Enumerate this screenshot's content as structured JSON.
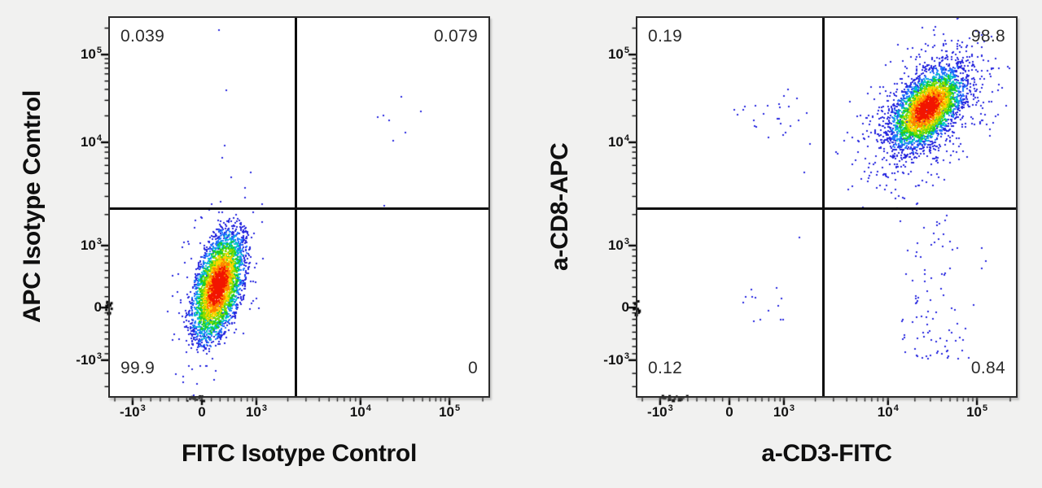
{
  "figure": {
    "background": "#f1f1f0",
    "description": "Two-panel flow cytometry pseudocolor density dot plots with quadrant gates"
  },
  "palette": {
    "density": [
      "#f21500",
      "#ff7e00",
      "#ffd400",
      "#8fdc00",
      "#1ecf1e",
      "#00c8c8",
      "#1e78ff",
      "#2222dd"
    ],
    "thresholds": [
      0.5,
      0.75,
      1.0,
      1.22,
      1.45,
      1.7,
      2.0
    ],
    "dot_blue": "#2525df",
    "tick_color": "#000000",
    "frame_color": "#2b2b2b",
    "quadrant_line_color": "#0c0c0c"
  },
  "chart_data": [
    {
      "type": "scatter",
      "panel": "left",
      "xlabel": "FITC Isotype Control",
      "ylabel": "APC Isotype Control",
      "x_axis": {
        "ticks": [
          {
            "base": "-10",
            "sup": "3",
            "frac": 0.06
          },
          {
            "base": "0",
            "sup": "",
            "frac": 0.243
          },
          {
            "base": "10",
            "sup": "3",
            "frac": 0.387
          },
          {
            "base": "10",
            "sup": "4",
            "frac": 0.662
          },
          {
            "base": "10",
            "sup": "5",
            "frac": 0.897
          }
        ],
        "minor_fracs": [
          0.013,
          0.082,
          0.108,
          0.133,
          0.157,
          0.181,
          0.203,
          0.225,
          0.268,
          0.291,
          0.312,
          0.329,
          0.347,
          0.363,
          0.377,
          0.47,
          0.518,
          0.553,
          0.579,
          0.601,
          0.619,
          0.635,
          0.649,
          0.733,
          0.774,
          0.803,
          0.826,
          0.845,
          0.861,
          0.874,
          0.886,
          0.985
        ]
      },
      "y_axis": {
        "ticks": [
          {
            "base": "-10",
            "sup": "3",
            "frac": 0.095
          },
          {
            "base": "0",
            "sup": "",
            "frac": 0.234
          },
          {
            "base": "10",
            "sup": "3",
            "frac": 0.398
          },
          {
            "base": "10",
            "sup": "4",
            "frac": 0.671
          },
          {
            "base": "10",
            "sup": "5",
            "frac": 0.903
          }
        ],
        "minor_fracs": [
          0.025,
          0.06,
          0.112,
          0.131,
          0.151,
          0.169,
          0.187,
          0.203,
          0.22,
          0.263,
          0.288,
          0.313,
          0.332,
          0.352,
          0.37,
          0.387,
          0.48,
          0.528,
          0.562,
          0.589,
          0.61,
          0.629,
          0.645,
          0.658,
          0.741,
          0.782,
          0.811,
          0.833,
          0.852,
          0.867,
          0.88,
          0.892,
          0.973
        ]
      },
      "quadrants": {
        "x_frac": 0.491,
        "y_frac": 0.495,
        "labels": {
          "UL": "0.039",
          "UR": "0.079",
          "LL": "99.9",
          "LR": "0"
        }
      },
      "populations": [
        {
          "name": "double-negative-main",
          "kind": "gauss",
          "n": 3600,
          "cx": 0.286,
          "cy": 0.29,
          "angle": 75,
          "smaj": 0.075,
          "smin": 0.0295,
          "rmax": 2.5,
          "seed": 101,
          "paint": "density"
        },
        {
          "name": "double-negative-halo",
          "kind": "gauss",
          "n": 240,
          "cx": 0.286,
          "cy": 0.292,
          "angle": 75,
          "smaj": 0.145,
          "smin": 0.056,
          "rmax": 2.2,
          "seed": 102,
          "paint": "blue"
        }
      ],
      "outliers": [
        [
          0.288,
          0.968
        ],
        [
          0.308,
          0.808
        ],
        [
          0.303,
          0.662
        ],
        [
          0.297,
          0.63
        ],
        [
          0.77,
          0.791
        ],
        [
          0.822,
          0.753
        ],
        [
          0.723,
          0.742
        ],
        [
          0.708,
          0.738
        ],
        [
          0.738,
          0.729
        ],
        [
          0.781,
          0.697
        ],
        [
          0.748,
          0.675
        ],
        [
          0.725,
          0.503
        ]
      ],
      "axis_pileups": {
        "x": {
          "from": 0.205,
          "to": 0.25,
          "n": 12
        },
        "y": {
          "from": 0.215,
          "to": 0.252,
          "n": 11
        }
      }
    },
    {
      "type": "scatter",
      "panel": "right",
      "xlabel": "a-CD3-FITC",
      "ylabel": "a-CD8-APC",
      "x_axis": {
        "ticks": [
          {
            "base": "-10",
            "sup": "3",
            "frac": 0.06
          },
          {
            "base": "0",
            "sup": "",
            "frac": 0.243
          },
          {
            "base": "10",
            "sup": "3",
            "frac": 0.387
          },
          {
            "base": "10",
            "sup": "4",
            "frac": 0.662
          },
          {
            "base": "10",
            "sup": "5",
            "frac": 0.897
          }
        ],
        "minor_fracs": [
          0.013,
          0.082,
          0.108,
          0.133,
          0.157,
          0.181,
          0.203,
          0.225,
          0.268,
          0.291,
          0.312,
          0.329,
          0.347,
          0.363,
          0.377,
          0.47,
          0.518,
          0.553,
          0.579,
          0.601,
          0.619,
          0.635,
          0.649,
          0.733,
          0.774,
          0.803,
          0.826,
          0.845,
          0.861,
          0.874,
          0.886,
          0.985
        ]
      },
      "y_axis": {
        "ticks": [
          {
            "base": "-10",
            "sup": "3",
            "frac": 0.095
          },
          {
            "base": "0",
            "sup": "",
            "frac": 0.234
          },
          {
            "base": "10",
            "sup": "3",
            "frac": 0.398
          },
          {
            "base": "10",
            "sup": "4",
            "frac": 0.671
          },
          {
            "base": "10",
            "sup": "5",
            "frac": 0.903
          }
        ],
        "minor_fracs": [
          0.025,
          0.06,
          0.112,
          0.131,
          0.151,
          0.169,
          0.187,
          0.203,
          0.22,
          0.263,
          0.288,
          0.313,
          0.332,
          0.352,
          0.37,
          0.387,
          0.48,
          0.528,
          0.562,
          0.589,
          0.61,
          0.629,
          0.645,
          0.658,
          0.741,
          0.782,
          0.811,
          0.833,
          0.852,
          0.867,
          0.88,
          0.892,
          0.973
        ]
      },
      "quadrants": {
        "x_frac": 0.492,
        "y_frac": 0.495,
        "labels": {
          "UL": "0.19",
          "UR": "98.8",
          "LL": "0.12",
          "LR": "0.84"
        }
      },
      "populations": [
        {
          "name": "double-positive-main",
          "kind": "gauss",
          "n": 3400,
          "cx": 0.766,
          "cy": 0.761,
          "angle": 50,
          "smaj": 0.062,
          "smin": 0.034,
          "rmax": 3.0,
          "seed": 201,
          "paint": "density"
        },
        {
          "name": "double-positive-halo",
          "kind": "gauss",
          "n": 620,
          "cx": 0.757,
          "cy": 0.748,
          "angle": 50,
          "smaj": 0.132,
          "smin": 0.08,
          "rmax": 2.3,
          "seed": 202,
          "paint": "blue"
        },
        {
          "name": "lower-tail",
          "kind": "strip",
          "n": 95,
          "cx": 0.782,
          "sx": 0.048,
          "ytop": 0.48,
          "yspan": 0.385,
          "pw": 0.8,
          "seed": 203,
          "paint": "blue"
        },
        {
          "name": "upper-left-band",
          "kind": "gauss",
          "n": 24,
          "cx": 0.37,
          "cy": 0.746,
          "angle": 0,
          "smaj": 0.07,
          "smin": 0.03,
          "rmax": 2.2,
          "seed": 204,
          "paint": "blue"
        },
        {
          "name": "lower-left-cluster",
          "kind": "gauss",
          "n": 13,
          "cx": 0.338,
          "cy": 0.256,
          "angle": 0,
          "smaj": 0.05,
          "smin": 0.042,
          "rmax": 2.0,
          "seed": 205,
          "paint": "blue"
        }
      ],
      "outliers": [
        [
          0.398,
          0.811
        ],
        [
          0.456,
          0.667
        ],
        [
          0.441,
          0.591
        ],
        [
          0.428,
          0.419
        ]
      ],
      "axis_pileups": {
        "x": {
          "from": 0.063,
          "to": 0.135,
          "n": 15
        },
        "y": {
          "from": 0.215,
          "to": 0.252,
          "n": 11
        }
      }
    }
  ]
}
